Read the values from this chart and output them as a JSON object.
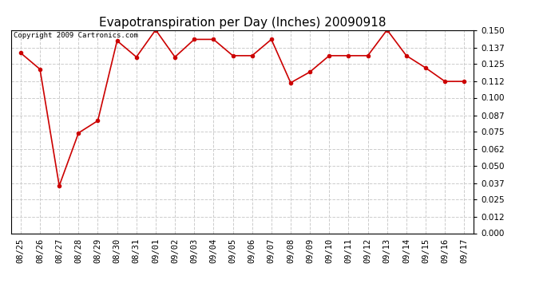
{
  "title": "Evapotranspiration per Day (Inches) 20090918",
  "copyright": "Copyright 2009 Cartronics.com",
  "x_labels": [
    "08/25",
    "08/26",
    "08/27",
    "08/28",
    "08/29",
    "08/30",
    "08/31",
    "09/01",
    "09/02",
    "09/03",
    "09/04",
    "09/05",
    "09/06",
    "09/07",
    "09/08",
    "09/09",
    "09/10",
    "09/11",
    "09/12",
    "09/13",
    "09/14",
    "09/15",
    "09/16",
    "09/17"
  ],
  "y_values": [
    0.133,
    0.121,
    0.035,
    0.074,
    0.083,
    0.142,
    0.13,
    0.15,
    0.13,
    0.143,
    0.143,
    0.131,
    0.131,
    0.143,
    0.111,
    0.119,
    0.131,
    0.131,
    0.131,
    0.15,
    0.131,
    0.122,
    0.112,
    0.112
  ],
  "line_color": "#cc0000",
  "marker": "o",
  "marker_size": 3,
  "y_min": 0.0,
  "y_max": 0.15,
  "y_ticks": [
    0.0,
    0.012,
    0.025,
    0.037,
    0.05,
    0.062,
    0.075,
    0.087,
    0.1,
    0.112,
    0.125,
    0.137,
    0.15
  ],
  "bg_color": "#ffffff",
  "grid_color": "#cccccc",
  "title_fontsize": 11,
  "copyright_fontsize": 6.5,
  "tick_fontsize": 7.5
}
